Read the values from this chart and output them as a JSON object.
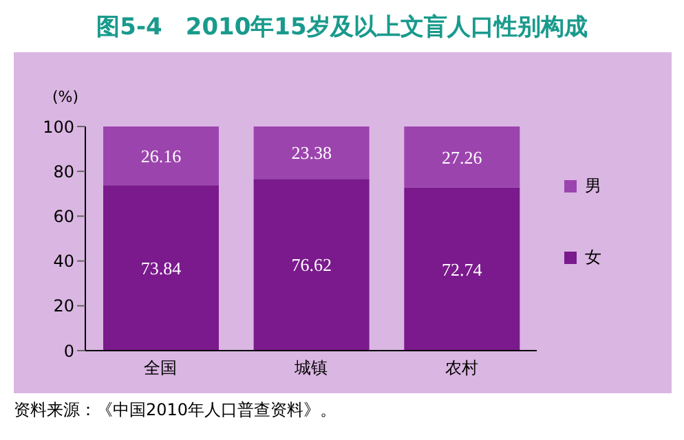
{
  "chart_data": {
    "type": "bar",
    "title": "图5-4　2010年15岁及以上文盲人口性别构成",
    "ylabel": "(%)",
    "categories": [
      "全国",
      "城镇",
      "农村"
    ],
    "stacked": true,
    "data_labels": true,
    "legend": "right",
    "grid": false,
    "ylim": [
      0,
      100
    ],
    "yticks": [
      0,
      20,
      40,
      60,
      80,
      100
    ],
    "series": [
      {
        "name": "女",
        "color": "#7a1a8c",
        "values": [
          73.84,
          76.62,
          72.74
        ]
      },
      {
        "name": "男",
        "color": "#9c44ae",
        "values": [
          26.16,
          23.38,
          27.26
        ]
      }
    ],
    "annotations": [
      "资料来源：《中国2010年人口普查资料》。"
    ]
  }
}
